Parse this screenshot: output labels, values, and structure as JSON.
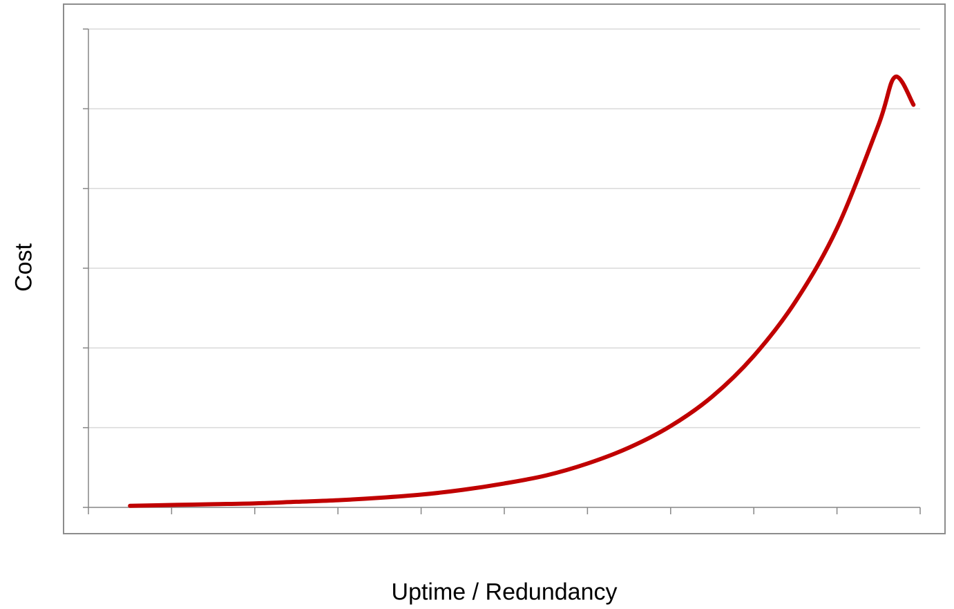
{
  "chart_data": {
    "type": "line",
    "title": "",
    "xlabel": "Uptime / Redundancy",
    "ylabel": "Cost",
    "x_ticks_count": 10,
    "y_ticks_count": 6,
    "xlim": [
      0,
      10
    ],
    "ylim": [
      0,
      6
    ],
    "grid": true,
    "legend": "none",
    "series": [
      {
        "color": "#c00000",
        "points": [
          [
            0.5,
            0.02
          ],
          [
            1.0,
            0.03
          ],
          [
            1.5,
            0.04
          ],
          [
            2.0,
            0.05
          ],
          [
            2.5,
            0.07
          ],
          [
            3.0,
            0.09
          ],
          [
            3.5,
            0.12
          ],
          [
            4.0,
            0.16
          ],
          [
            4.5,
            0.22
          ],
          [
            5.0,
            0.3
          ],
          [
            5.5,
            0.4
          ],
          [
            6.0,
            0.55
          ],
          [
            6.5,
            0.75
          ],
          [
            7.0,
            1.02
          ],
          [
            7.5,
            1.39
          ],
          [
            8.0,
            1.9
          ],
          [
            8.5,
            2.58
          ],
          [
            9.0,
            3.5
          ],
          [
            9.5,
            4.8
          ],
          [
            9.7,
            5.4
          ],
          [
            9.92,
            5.05
          ]
        ]
      }
    ]
  },
  "colors": {
    "line": "#c00000",
    "grid": "#d9d9d9",
    "axis": "#868686",
    "frame": "#8c8c8c"
  }
}
